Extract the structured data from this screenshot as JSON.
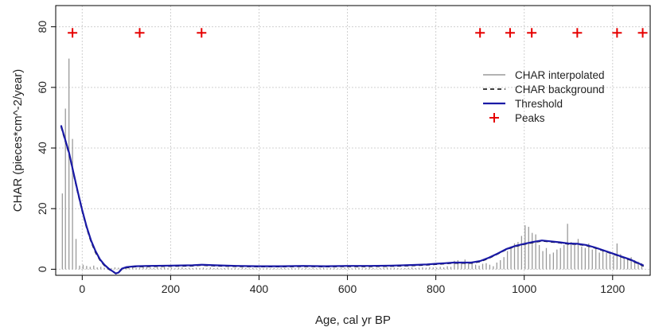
{
  "chart_data": {
    "type": "bar",
    "title": "",
    "xlabel": "Age, cal yr BP",
    "ylabel": "CHAR (pieces*cm^-2/year)",
    "xlim": [
      -60,
      1285
    ],
    "ylim": [
      -2,
      87
    ],
    "x_ticks": [
      0,
      200,
      400,
      600,
      800,
      1000,
      1200
    ],
    "y_ticks": [
      0,
      20,
      40,
      60,
      80
    ],
    "x_tick_labels": [
      "0",
      "200",
      "400",
      "600",
      "800",
      "1000",
      "1200"
    ],
    "y_tick_labels": [
      "0",
      "20",
      "40",
      "60",
      "80"
    ],
    "grid": true,
    "legend_position": "top-right",
    "series": [
      {
        "name": "CHAR interpolated",
        "color": "#9a9a9a",
        "style": "vertical-lines",
        "points": [
          [
            -45,
            25
          ],
          [
            -38,
            53
          ],
          [
            -30,
            69.5
          ],
          [
            -22,
            43
          ],
          [
            -14,
            10
          ],
          [
            -6,
            1.2
          ],
          [
            2,
            1.5
          ],
          [
            10,
            1.1
          ],
          [
            18,
            0.8
          ],
          [
            26,
            1.2
          ],
          [
            34,
            0.6
          ],
          [
            42,
            0.8
          ],
          [
            50,
            0.5
          ],
          [
            58,
            0.3
          ],
          [
            66,
            0.4
          ],
          [
            74,
            0.6
          ],
          [
            82,
            0.5
          ],
          [
            90,
            0.4
          ],
          [
            98,
            0.5
          ],
          [
            106,
            0.3
          ],
          [
            114,
            0.6
          ],
          [
            122,
            0.4
          ],
          [
            130,
            0.5
          ],
          [
            138,
            0.8
          ],
          [
            146,
            0.6
          ],
          [
            154,
            0.5
          ],
          [
            162,
            0.4
          ],
          [
            170,
            0.6
          ],
          [
            178,
            0.5
          ],
          [
            186,
            0.6
          ],
          [
            194,
            0.4
          ],
          [
            202,
            0.5
          ],
          [
            210,
            0.3
          ],
          [
            218,
            0.5
          ],
          [
            226,
            0.6
          ],
          [
            234,
            0.4
          ],
          [
            242,
            0.5
          ],
          [
            250,
            0.4
          ],
          [
            258,
            0.5
          ],
          [
            266,
            0.4
          ],
          [
            274,
            0.5
          ],
          [
            282,
            0.3
          ],
          [
            290,
            0.6
          ],
          [
            298,
            0.4
          ],
          [
            306,
            0.5
          ],
          [
            314,
            0.3
          ],
          [
            322,
            0.4
          ],
          [
            330,
            0.5
          ],
          [
            338,
            0.3
          ],
          [
            346,
            0.4
          ],
          [
            354,
            0.3
          ],
          [
            362,
            0.5
          ],
          [
            370,
            0.4
          ],
          [
            378,
            0.3
          ],
          [
            386,
            0.4
          ],
          [
            394,
            0.3
          ],
          [
            402,
            0.4
          ],
          [
            410,
            0.3
          ],
          [
            418,
            0.5
          ],
          [
            426,
            0.3
          ],
          [
            434,
            0.4
          ],
          [
            442,
            0.3
          ],
          [
            450,
            0.5
          ],
          [
            458,
            0.4
          ],
          [
            466,
            0.3
          ],
          [
            474,
            0.4
          ],
          [
            482,
            0.3
          ],
          [
            490,
            0.5
          ],
          [
            498,
            0.3
          ],
          [
            506,
            0.4
          ],
          [
            514,
            0.3
          ],
          [
            522,
            0.4
          ],
          [
            530,
            0.3
          ],
          [
            538,
            0.4
          ],
          [
            546,
            0.5
          ],
          [
            554,
            0.3
          ],
          [
            562,
            0.4
          ],
          [
            570,
            0.5
          ],
          [
            578,
            0.3
          ],
          [
            586,
            0.4
          ],
          [
            594,
            0.5
          ],
          [
            602,
            0.4
          ],
          [
            610,
            0.3
          ],
          [
            618,
            0.4
          ],
          [
            626,
            0.5
          ],
          [
            634,
            0.3
          ],
          [
            642,
            0.4
          ],
          [
            650,
            0.5
          ],
          [
            658,
            0.4
          ],
          [
            666,
            0.3
          ],
          [
            674,
            0.4
          ],
          [
            682,
            0.5
          ],
          [
            690,
            0.6
          ],
          [
            698,
            0.4
          ],
          [
            706,
            0.5
          ],
          [
            714,
            0.4
          ],
          [
            722,
            0.3
          ],
          [
            730,
            0.4
          ],
          [
            738,
            0.5
          ],
          [
            746,
            0.6
          ],
          [
            754,
            0.4
          ],
          [
            762,
            0.5
          ],
          [
            770,
            0.6
          ],
          [
            778,
            0.5
          ],
          [
            786,
            0.7
          ],
          [
            794,
            0.6
          ],
          [
            802,
            0.5
          ],
          [
            810,
            0.8
          ],
          [
            818,
            0.6
          ],
          [
            826,
            1.0
          ],
          [
            834,
            0.8
          ],
          [
            842,
            2.8
          ],
          [
            850,
            3.0
          ],
          [
            858,
            2.5
          ],
          [
            866,
            3.2
          ],
          [
            874,
            2.0
          ],
          [
            882,
            2.4
          ],
          [
            890,
            1.5
          ],
          [
            898,
            1.2
          ],
          [
            906,
            1.8
          ],
          [
            914,
            2.0
          ],
          [
            922,
            1.5
          ],
          [
            930,
            1.0
          ],
          [
            938,
            2.2
          ],
          [
            946,
            3.0
          ],
          [
            954,
            4.0
          ],
          [
            962,
            6.0
          ],
          [
            970,
            7.5
          ],
          [
            978,
            8.5
          ],
          [
            986,
            9.0
          ],
          [
            994,
            11.0
          ],
          [
            1002,
            14.5
          ],
          [
            1010,
            14.0
          ],
          [
            1018,
            12.0
          ],
          [
            1026,
            11.5
          ],
          [
            1034,
            8.0
          ],
          [
            1042,
            6.0
          ],
          [
            1050,
            7.0
          ],
          [
            1058,
            5.0
          ],
          [
            1066,
            5.5
          ],
          [
            1074,
            6.5
          ],
          [
            1082,
            7.0
          ],
          [
            1090,
            8.0
          ],
          [
            1098,
            15.0
          ],
          [
            1106,
            9.0
          ],
          [
            1114,
            8.0
          ],
          [
            1122,
            10.0
          ],
          [
            1130,
            7.5
          ],
          [
            1138,
            7.0
          ],
          [
            1146,
            8.5
          ],
          [
            1154,
            6.5
          ],
          [
            1162,
            7.0
          ],
          [
            1170,
            5.5
          ],
          [
            1178,
            6.0
          ],
          [
            1186,
            5.5
          ],
          [
            1194,
            5.0
          ],
          [
            1202,
            4.5
          ],
          [
            1210,
            8.5
          ],
          [
            1218,
            5.0
          ],
          [
            1226,
            4.0
          ],
          [
            1234,
            3.5
          ],
          [
            1242,
            4.0
          ],
          [
            1250,
            3.0
          ],
          [
            1258,
            2.5
          ],
          [
            1266,
            2.0
          ]
        ]
      },
      {
        "name": "CHAR background",
        "color": "#000000",
        "style": "dashed-line",
        "points": [
          [
            -48,
            47
          ],
          [
            -40,
            43
          ],
          [
            -30,
            38
          ],
          [
            -20,
            31.5
          ],
          [
            -10,
            25
          ],
          [
            0,
            19
          ],
          [
            10,
            13.5
          ],
          [
            20,
            9
          ],
          [
            30,
            5.5
          ],
          [
            40,
            3
          ],
          [
            50,
            1.2
          ],
          [
            60,
            0
          ],
          [
            70,
            -0.9
          ],
          [
            76,
            -1.5
          ],
          [
            82,
            -1.2
          ],
          [
            90,
            0
          ],
          [
            100,
            0.5
          ],
          [
            120,
            0.8
          ],
          [
            150,
            0.9
          ],
          [
            200,
            1.0
          ],
          [
            250,
            1.1
          ],
          [
            270,
            1.3
          ],
          [
            300,
            1.1
          ],
          [
            350,
            0.9
          ],
          [
            400,
            0.8
          ],
          [
            450,
            0.8
          ],
          [
            500,
            0.9
          ],
          [
            550,
            0.8
          ],
          [
            600,
            0.9
          ],
          [
            650,
            0.9
          ],
          [
            700,
            1.0
          ],
          [
            750,
            1.2
          ],
          [
            780,
            1.4
          ],
          [
            800,
            1.6
          ],
          [
            820,
            1.8
          ],
          [
            840,
            2.0
          ],
          [
            860,
            2.0
          ],
          [
            880,
            2.0
          ],
          [
            900,
            2.5
          ],
          [
            920,
            3.6
          ],
          [
            940,
            5.0
          ],
          [
            960,
            6.5
          ],
          [
            980,
            7.5
          ],
          [
            1000,
            8.2
          ],
          [
            1020,
            8.8
          ],
          [
            1040,
            9.3
          ],
          [
            1060,
            9.0
          ],
          [
            1080,
            8.7
          ],
          [
            1100,
            8.3
          ],
          [
            1120,
            8.2
          ],
          [
            1140,
            7.8
          ],
          [
            1160,
            7.0
          ],
          [
            1180,
            6.0
          ],
          [
            1200,
            5.0
          ],
          [
            1220,
            4.0
          ],
          [
            1240,
            3.0
          ],
          [
            1255,
            2.0
          ],
          [
            1270,
            1.0
          ]
        ]
      },
      {
        "name": "Threshold",
        "color": "#1a1aa6",
        "style": "line",
        "points": [
          [
            -48,
            47.5
          ],
          [
            -40,
            43.5
          ],
          [
            -30,
            38.5
          ],
          [
            -20,
            32
          ],
          [
            -10,
            25.5
          ],
          [
            0,
            19.5
          ],
          [
            10,
            14
          ],
          [
            20,
            9.5
          ],
          [
            30,
            6
          ],
          [
            40,
            3.3
          ],
          [
            50,
            1.5
          ],
          [
            60,
            0.2
          ],
          [
            70,
            -0.8
          ],
          [
            76,
            -1.4
          ],
          [
            82,
            -1.1
          ],
          [
            90,
            0.2
          ],
          [
            100,
            0.7
          ],
          [
            120,
            1.0
          ],
          [
            150,
            1.1
          ],
          [
            200,
            1.2
          ],
          [
            250,
            1.3
          ],
          [
            270,
            1.5
          ],
          [
            300,
            1.3
          ],
          [
            350,
            1.1
          ],
          [
            400,
            1.0
          ],
          [
            450,
            1.0
          ],
          [
            500,
            1.1
          ],
          [
            550,
            1.0
          ],
          [
            600,
            1.1
          ],
          [
            650,
            1.1
          ],
          [
            700,
            1.2
          ],
          [
            750,
            1.4
          ],
          [
            780,
            1.6
          ],
          [
            800,
            1.8
          ],
          [
            820,
            2.0
          ],
          [
            840,
            2.2
          ],
          [
            860,
            2.2
          ],
          [
            880,
            2.2
          ],
          [
            900,
            2.7
          ],
          [
            920,
            3.8
          ],
          [
            940,
            5.2
          ],
          [
            960,
            6.7
          ],
          [
            980,
            7.7
          ],
          [
            1000,
            8.4
          ],
          [
            1020,
            9.0
          ],
          [
            1040,
            9.5
          ],
          [
            1060,
            9.2
          ],
          [
            1080,
            8.9
          ],
          [
            1100,
            8.5
          ],
          [
            1120,
            8.4
          ],
          [
            1140,
            8.0
          ],
          [
            1160,
            7.2
          ],
          [
            1180,
            6.2
          ],
          [
            1200,
            5.2
          ],
          [
            1220,
            4.2
          ],
          [
            1240,
            3.2
          ],
          [
            1255,
            2.2
          ],
          [
            1270,
            1.2
          ]
        ]
      },
      {
        "name": "Peaks",
        "color": "#e60000",
        "style": "plus-markers",
        "points": [
          [
            -22,
            78
          ],
          [
            130,
            78
          ],
          [
            270,
            78
          ],
          [
            900,
            78
          ],
          [
            968,
            78
          ],
          [
            1017,
            78
          ],
          [
            1120,
            78
          ],
          [
            1210,
            78
          ],
          [
            1268,
            78
          ]
        ]
      }
    ]
  }
}
